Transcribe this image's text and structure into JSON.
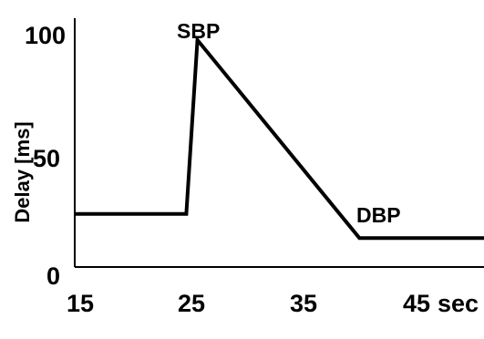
{
  "chart_data": {
    "type": "line",
    "title": "",
    "xlabel": "",
    "ylabel": "Delay [ms]",
    "x_unit": "sec",
    "xlim": [
      15,
      49
    ],
    "ylim": [
      0,
      103
    ],
    "x_ticks": [
      "15",
      "25",
      "35",
      "45"
    ],
    "y_ticks": [
      "0",
      "50",
      "100"
    ],
    "grid": false,
    "series": [
      {
        "x": [
          15,
          24.5,
          25.5,
          40,
          49
        ],
        "y": [
          22,
          22,
          94,
          12,
          12
        ],
        "color": "#000000"
      }
    ],
    "annotations": [
      {
        "text": "SBP",
        "x": 25.5,
        "y": 94
      },
      {
        "text": "DBP",
        "x": 40,
        "y": 12
      }
    ]
  }
}
